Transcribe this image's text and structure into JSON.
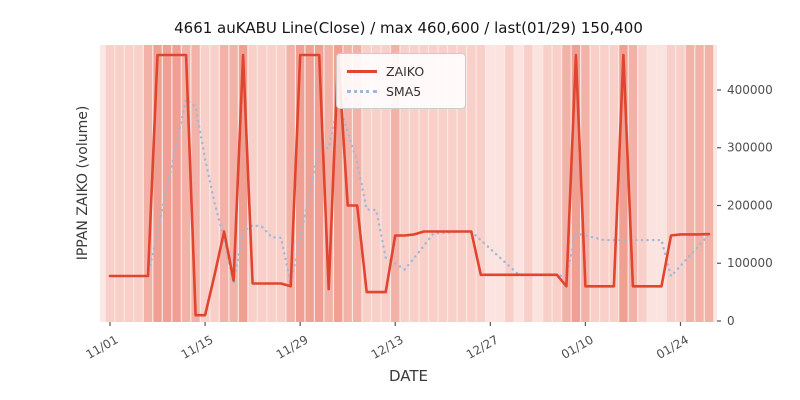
{
  "figure": {
    "title": "4661 auKABU Line(Close) / max 460,600 / last(01/29) 150,400"
  },
  "chart_data": {
    "type": "line",
    "title": "4661 auKABU Line(Close) / max 460,600 / last(01/29) 150,400",
    "xlabel": "DATE",
    "ylabel": "IPPAN ZAIKO (volume)",
    "legend_position": "upper center",
    "grid": false,
    "max_value": 460600,
    "last_date": "01/29",
    "last_value": 150400,
    "ylim": [
      0,
      478000
    ],
    "yticks": [
      0,
      100000,
      200000,
      300000,
      400000
    ],
    "xtick_labels": [
      "11/01",
      "11/15",
      "11/29",
      "12/13",
      "12/27",
      "01/10",
      "01/24"
    ],
    "xtick_indices": [
      0,
      10,
      20,
      30,
      40,
      50,
      60
    ],
    "x_dates": [
      "11/01",
      "11/02",
      "11/03",
      "11/06",
      "11/07",
      "11/08",
      "11/09",
      "11/10",
      "11/13",
      "11/14",
      "11/15",
      "11/16",
      "11/17",
      "11/20",
      "11/21",
      "11/22",
      "11/23",
      "11/24",
      "11/27",
      "11/28",
      "11/29",
      "11/30",
      "12/01",
      "12/04",
      "12/05",
      "12/06",
      "12/07",
      "12/08",
      "12/11",
      "12/12",
      "12/13",
      "12/14",
      "12/15",
      "12/18",
      "12/19",
      "12/20",
      "12/21",
      "12/22",
      "12/25",
      "12/26",
      "12/27",
      "12/28",
      "12/29",
      "01/01",
      "01/02",
      "01/03",
      "01/04",
      "01/05",
      "01/08",
      "01/09",
      "01/10",
      "01/11",
      "01/12",
      "01/15",
      "01/16",
      "01/17",
      "01/18",
      "01/19",
      "01/22",
      "01/23",
      "01/24",
      "01/25",
      "01/26",
      "01/29"
    ],
    "series": [
      {
        "name": "ZAIKO",
        "style": "solid",
        "color": "#e2452f",
        "values": [
          78000,
          78000,
          78000,
          78000,
          78000,
          460600,
          460600,
          460600,
          460600,
          10000,
          10000,
          80000,
          155000,
          70000,
          460600,
          65000,
          65000,
          65000,
          65000,
          60000,
          460600,
          460600,
          460600,
          55000,
          460600,
          200000,
          200000,
          50000,
          50000,
          50000,
          148000,
          148000,
          150000,
          155000,
          155000,
          155000,
          155000,
          155000,
          155000,
          80000,
          80000,
          80000,
          80000,
          80000,
          80000,
          80000,
          80000,
          80000,
          60000,
          460600,
          60000,
          60000,
          60000,
          60000,
          460600,
          60000,
          60000,
          60000,
          60000,
          148000,
          150000,
          150000,
          150000,
          150400
        ]
      },
      {
        "name": "SMA5",
        "style": "dotted",
        "color": "#9fb9d8",
        "window": 5
      }
    ],
    "background": {
      "plot_bg": "#fbe7e3",
      "band_palette": [
        "#fbe3df",
        "#f8d0c9",
        "#f3b2a7",
        "#efa092"
      ],
      "band_levels": [
        1,
        1,
        1,
        1,
        2,
        3,
        3,
        3,
        2,
        2,
        1,
        1,
        2,
        2,
        3,
        1,
        1,
        1,
        1,
        2,
        3,
        3,
        3,
        2,
        3,
        2,
        2,
        1,
        1,
        1,
        2,
        1,
        1,
        1,
        1,
        1,
        1,
        1,
        1,
        1,
        0,
        0,
        1,
        0,
        1,
        0,
        1,
        1,
        2,
        3,
        2,
        1,
        1,
        1,
        3,
        2,
        1,
        0,
        0,
        1,
        1,
        2,
        2,
        2
      ]
    }
  }
}
